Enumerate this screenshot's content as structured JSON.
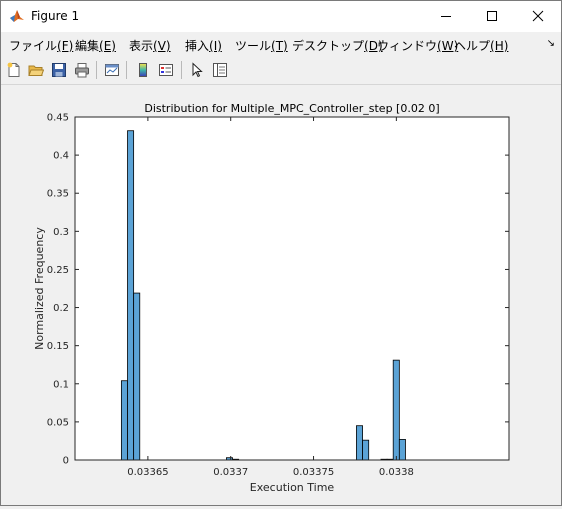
{
  "window": {
    "title": "Figure 1",
    "menu": [
      {
        "label": "ファイル",
        "key": "(F)"
      },
      {
        "label": "編集",
        "key": "(E)"
      },
      {
        "label": "表示",
        "key": "(V)"
      },
      {
        "label": "挿入",
        "key": "(I)"
      },
      {
        "label": "ツール",
        "key": "(T)"
      },
      {
        "label": "デスクトップ",
        "key": "(D)"
      },
      {
        "label": "ウィンドウ",
        "key": "(W)"
      },
      {
        "label": "ヘルプ",
        "key": "(H)"
      }
    ],
    "menu_corner_glyph": "↘",
    "toolbar_icons": [
      "new-figure-icon",
      "open-folder-icon",
      "save-icon",
      "print-icon",
      "link-plot-icon",
      "insert-colorbar-icon",
      "insert-legend-icon",
      "edit-plot-arrow-icon",
      "property-inspector-icon"
    ]
  },
  "chart_data": {
    "type": "bar",
    "title": "Distribution for Multiple_MPC_Controller_step [0.02 0]",
    "xlabel": "Execution Time",
    "ylabel": "Normalized Frequency",
    "xlim": [
      0.033606,
      0.033868
    ],
    "ylim": [
      0,
      0.45
    ],
    "xticks": [
      0.03365,
      0.0337,
      0.03375,
      0.0338
    ],
    "xtick_labels": [
      "0.03365",
      "0.0337",
      "0.03375",
      "0.0338"
    ],
    "yticks": [
      0,
      0.05,
      0.1,
      0.15,
      0.2,
      0.25,
      0.3,
      0.35,
      0.4,
      0.45
    ],
    "ytick_labels": [
      "0",
      "0.05",
      "0.1",
      "0.15",
      "0.2",
      "0.25",
      "0.3",
      "0.35",
      "0.4",
      "0.45"
    ],
    "bin_width": 3.7e-06,
    "bin_edges_left": [
      0.033634,
      0.0336377,
      0.0336414,
      0.0336974,
      0.0337011,
      0.0337759,
      0.0337796,
      0.0337907,
      0.0337944,
      0.0337981,
      0.0338018
    ],
    "values": [
      0.104,
      0.432,
      0.219,
      0.003,
      0.001,
      0.045,
      0.026,
      0.001,
      0.001,
      0.131,
      0.027
    ],
    "bar_color": "#5ba3d6",
    "edge_color": "#000000",
    "grid": false
  }
}
